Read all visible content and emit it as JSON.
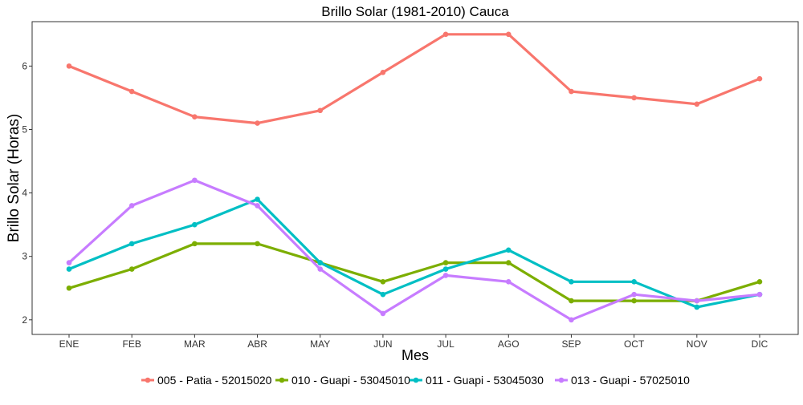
{
  "chart_data": {
    "type": "line",
    "title": "Brillo Solar (1981-2010)  Cauca",
    "xlabel": "Mes",
    "ylabel": "Brillo Solar (Horas)",
    "categories": [
      "ENE",
      "FEB",
      "MAR",
      "ABR",
      "MAY",
      "JUN",
      "JUL",
      "AGO",
      "SEP",
      "OCT",
      "NOV",
      "DIC"
    ],
    "ylim": [
      1.77,
      6.7
    ],
    "yticks": [
      2,
      3,
      4,
      5,
      6
    ],
    "grid": false,
    "legend_position": "bottom",
    "series": [
      {
        "name": "005 - Patia - 52015020",
        "color": "#F8766D",
        "values": [
          6.0,
          5.6,
          5.2,
          5.1,
          5.3,
          5.9,
          6.5,
          6.5,
          5.6,
          5.5,
          5.4,
          5.8
        ]
      },
      {
        "name": "010 - Guapi - 53045010",
        "color": "#7CAE00",
        "values": [
          2.5,
          2.8,
          3.2,
          3.2,
          2.9,
          2.6,
          2.9,
          2.9,
          2.3,
          2.3,
          2.3,
          2.6
        ]
      },
      {
        "name": "011 - Guapi - 53045030",
        "color": "#00BFC4",
        "values": [
          2.8,
          3.2,
          3.5,
          3.9,
          2.9,
          2.4,
          2.8,
          3.1,
          2.6,
          2.6,
          2.2,
          2.4
        ]
      },
      {
        "name": "013 - Guapi - 57025010",
        "color": "#C77CFF",
        "values": [
          2.9,
          3.8,
          4.2,
          3.8,
          2.8,
          2.1,
          2.7,
          2.6,
          2.0,
          2.4,
          2.3,
          2.4
        ]
      }
    ]
  }
}
